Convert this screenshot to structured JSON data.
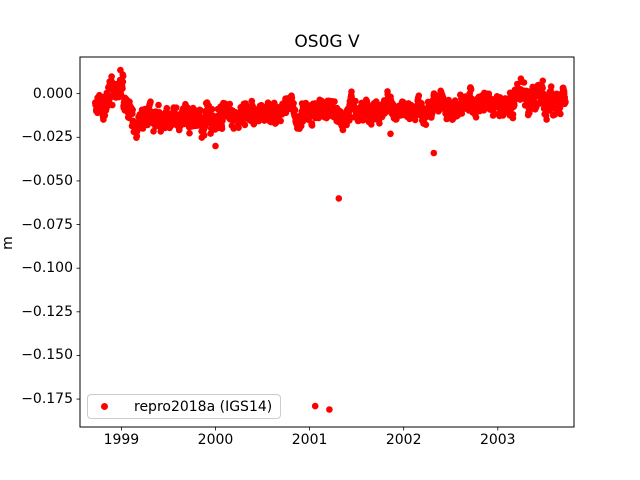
{
  "figure": {
    "background": "#ffffff"
  },
  "chart_data": {
    "type": "scatter",
    "title": "OS0G V",
    "xlabel": "",
    "ylabel": "m",
    "xlim": [
      1998.56,
      2003.81
    ],
    "ylim": [
      -0.191,
      0.021
    ],
    "grid": false,
    "legend": {
      "location": "lower left",
      "label": "repro2018a (IGS14)"
    },
    "xticks": {
      "values": [
        1999,
        2000,
        2001,
        2002,
        2003
      ],
      "labels": [
        "1999",
        "2000",
        "2001",
        "2002",
        "2003"
      ]
    },
    "yticks": {
      "values": [
        0.0,
        -0.025,
        -0.05,
        -0.075,
        -0.1,
        -0.125,
        -0.15,
        -0.175
      ],
      "labels": [
        "0.000",
        "−0.025",
        "−0.050",
        "−0.075",
        "−0.100",
        "−0.125",
        "−0.150",
        "−0.175"
      ]
    },
    "series": [
      {
        "name": "repro2018a (IGS14)",
        "color": "#ff0000",
        "marker": "circle",
        "marker_diameter_px": 6.6,
        "seed": 42,
        "band_clamp": [
          -0.0295,
          0.0135
        ],
        "band_segments": [
          {
            "x0": 1998.72,
            "x1": 1998.84,
            "center": -0.006,
            "spread": 0.009,
            "n": 45
          },
          {
            "x0": 1998.84,
            "x1": 1999.02,
            "center": 0.0,
            "spread": 0.012,
            "n": 70
          },
          {
            "x0": 1999.02,
            "x1": 1999.12,
            "center": -0.009,
            "spread": 0.009,
            "n": 35
          },
          {
            "x0": 1999.12,
            "x1": 1999.55,
            "center": -0.015,
            "spread": 0.008,
            "n": 150
          },
          {
            "x0": 1999.55,
            "x1": 2000.1,
            "center": -0.014,
            "spread": 0.009,
            "n": 190
          },
          {
            "x0": 2000.1,
            "x1": 2000.6,
            "center": -0.012,
            "spread": 0.008,
            "n": 175
          },
          {
            "x0": 2000.6,
            "x1": 2001.6,
            "center": -0.01,
            "spread": 0.008,
            "n": 350
          },
          {
            "x0": 2001.6,
            "x1": 2002.3,
            "center": -0.009,
            "spread": 0.008,
            "n": 245
          },
          {
            "x0": 2002.3,
            "x1": 2003.0,
            "center": -0.006,
            "spread": 0.008,
            "n": 245
          },
          {
            "x0": 2003.0,
            "x1": 2003.72,
            "center": -0.002,
            "spread": 0.01,
            "n": 255
          }
        ],
        "outliers": [
          {
            "x": 2000.0,
            "y": -0.03
          },
          {
            "x": 2001.06,
            "y": -0.179
          },
          {
            "x": 2001.21,
            "y": -0.181
          },
          {
            "x": 2001.31,
            "y": -0.06
          },
          {
            "x": 2001.86,
            "y": -0.023
          },
          {
            "x": 2002.32,
            "y": -0.034
          }
        ]
      }
    ]
  }
}
